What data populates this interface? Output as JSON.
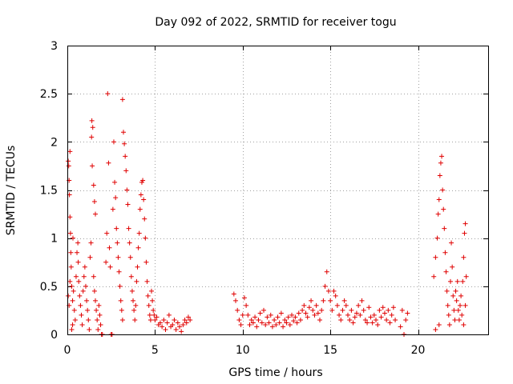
{
  "chart_data": {
    "type": "scatter",
    "title": "Day 092 of 2022, SRMTID for receiver togu",
    "xlabel": "GPS time / hours",
    "ylabel": "SRMTID / TECUs",
    "xlim": [
      0,
      24
    ],
    "ylim": [
      0,
      3
    ],
    "xticks": [
      0,
      5,
      10,
      15,
      20
    ],
    "yticks": [
      0,
      0.5,
      1,
      1.5,
      2,
      2.5,
      3
    ],
    "xtick_labels": [
      "0",
      "5",
      "10",
      "15",
      "20"
    ],
    "ytick_labels": [
      "0",
      "0.5",
      "1",
      "1.5",
      "2",
      "2.5",
      "3"
    ],
    "grid": true,
    "marker": "+",
    "color": "#e00000",
    "series": [
      {
        "name": "SRMTID",
        "points": [
          [
            0.05,
            1.8
          ],
          [
            0.08,
            1.75
          ],
          [
            0.1,
            1.6
          ],
          [
            0.12,
            1.45
          ],
          [
            0.15,
            1.22
          ],
          [
            0.18,
            1.05
          ],
          [
            0.2,
            0.85
          ],
          [
            0.05,
            0.4
          ],
          [
            0.1,
            0.3
          ],
          [
            0.15,
            0.55
          ],
          [
            0.22,
            0.7
          ],
          [
            0.25,
            0.5
          ],
          [
            0.3,
            0.35
          ],
          [
            0.35,
            0.45
          ],
          [
            0.4,
            0.25
          ],
          [
            0.45,
            0.15
          ],
          [
            0.3,
            0.1
          ],
          [
            0.5,
            0.6
          ],
          [
            0.55,
            0.85
          ],
          [
            0.6,
            0.95
          ],
          [
            0.62,
            0.75
          ],
          [
            0.65,
            0.55
          ],
          [
            0.7,
            0.4
          ],
          [
            0.75,
            0.3
          ],
          [
            0.8,
            0.2
          ],
          [
            0.85,
            0.1
          ],
          [
            0.9,
            0.45
          ],
          [
            0.95,
            0.6
          ],
          [
            1.0,
            0.7
          ],
          [
            1.05,
            0.5
          ],
          [
            1.1,
            0.35
          ],
          [
            1.15,
            0.25
          ],
          [
            1.2,
            0.15
          ],
          [
            1.25,
            0.05
          ],
          [
            0.15,
            1.9
          ],
          [
            0.32,
            1.0
          ],
          [
            0.25,
            0.05
          ],
          [
            1.4,
            2.22
          ],
          [
            1.45,
            2.15
          ],
          [
            1.38,
            2.05
          ],
          [
            1.42,
            1.75
          ],
          [
            1.5,
            1.55
          ],
          [
            1.55,
            1.38
          ],
          [
            1.6,
            1.25
          ],
          [
            1.35,
            0.95
          ],
          [
            1.3,
            0.8
          ],
          [
            1.5,
            0.6
          ],
          [
            1.55,
            0.45
          ],
          [
            1.6,
            0.35
          ],
          [
            1.65,
            0.25
          ],
          [
            1.7,
            0.15
          ],
          [
            1.75,
            0.05
          ],
          [
            1.8,
            0.3
          ],
          [
            1.85,
            0.2
          ],
          [
            1.9,
            0.1
          ],
          [
            1.95,
            0.0
          ],
          [
            2.0,
            0.0
          ],
          [
            2.3,
            2.5
          ],
          [
            2.35,
            1.78
          ],
          [
            2.25,
            1.05
          ],
          [
            2.4,
            0.9
          ],
          [
            2.45,
            0.7
          ],
          [
            2.2,
            0.75
          ],
          [
            2.6,
            1.3
          ],
          [
            2.65,
            2.0
          ],
          [
            2.7,
            1.58
          ],
          [
            2.75,
            1.42
          ],
          [
            2.8,
            1.1
          ],
          [
            2.85,
            0.95
          ],
          [
            2.9,
            0.8
          ],
          [
            2.95,
            0.65
          ],
          [
            3.0,
            0.5
          ],
          [
            3.05,
            0.35
          ],
          [
            3.1,
            0.25
          ],
          [
            3.15,
            0.15
          ],
          [
            2.5,
            0.0
          ],
          [
            2.55,
            0.0
          ],
          [
            3.15,
            2.44
          ],
          [
            3.2,
            2.1
          ],
          [
            3.25,
            1.98
          ],
          [
            3.3,
            1.85
          ],
          [
            3.35,
            1.7
          ],
          [
            3.4,
            1.5
          ],
          [
            3.45,
            1.35
          ],
          [
            3.5,
            1.1
          ],
          [
            3.55,
            0.95
          ],
          [
            3.6,
            0.8
          ],
          [
            3.65,
            0.6
          ],
          [
            3.7,
            0.45
          ],
          [
            3.75,
            0.35
          ],
          [
            3.8,
            0.25
          ],
          [
            3.85,
            0.15
          ],
          [
            3.9,
            0.3
          ],
          [
            3.95,
            0.55
          ],
          [
            4.0,
            0.7
          ],
          [
            4.05,
            0.9
          ],
          [
            4.1,
            1.05
          ],
          [
            4.15,
            1.3
          ],
          [
            4.2,
            1.45
          ],
          [
            4.25,
            1.58
          ],
          [
            4.3,
            1.6
          ],
          [
            4.35,
            1.4
          ],
          [
            4.4,
            1.2
          ],
          [
            4.45,
            1.0
          ],
          [
            4.5,
            0.75
          ],
          [
            4.55,
            0.55
          ],
          [
            4.6,
            0.4
          ],
          [
            4.65,
            0.3
          ],
          [
            4.7,
            0.2
          ],
          [
            4.75,
            0.15
          ],
          [
            4.8,
            0.45
          ],
          [
            4.85,
            0.35
          ],
          [
            4.9,
            0.25
          ],
          [
            4.95,
            0.2
          ],
          [
            5.0,
            0.15
          ],
          [
            5.1,
            0.18
          ],
          [
            5.2,
            0.1
          ],
          [
            5.3,
            0.12
          ],
          [
            5.4,
            0.08
          ],
          [
            5.5,
            0.15
          ],
          [
            5.6,
            0.05
          ],
          [
            5.7,
            0.12
          ],
          [
            5.8,
            0.2
          ],
          [
            5.9,
            0.08
          ],
          [
            6.0,
            0.1
          ],
          [
            6.1,
            0.15
          ],
          [
            6.2,
            0.05
          ],
          [
            6.3,
            0.12
          ],
          [
            6.4,
            0.08
          ],
          [
            6.5,
            0.03
          ],
          [
            6.6,
            0.1
          ],
          [
            6.7,
            0.15
          ],
          [
            6.8,
            0.12
          ],
          [
            6.9,
            0.18
          ],
          [
            7.0,
            0.15
          ],
          [
            9.5,
            0.42
          ],
          [
            9.6,
            0.35
          ],
          [
            9.7,
            0.25
          ],
          [
            9.8,
            0.15
          ],
          [
            9.9,
            0.1
          ],
          [
            10.0,
            0.2
          ],
          [
            10.1,
            0.38
          ],
          [
            10.2,
            0.3
          ],
          [
            10.3,
            0.2
          ],
          [
            10.4,
            0.1
          ],
          [
            10.5,
            0.15
          ],
          [
            10.6,
            0.12
          ],
          [
            10.7,
            0.18
          ],
          [
            10.8,
            0.08
          ],
          [
            10.9,
            0.15
          ],
          [
            11.0,
            0.22
          ],
          [
            11.1,
            0.12
          ],
          [
            11.2,
            0.25
          ],
          [
            11.3,
            0.1
          ],
          [
            11.4,
            0.18
          ],
          [
            11.5,
            0.12
          ],
          [
            11.6,
            0.2
          ],
          [
            11.7,
            0.08
          ],
          [
            11.8,
            0.15
          ],
          [
            11.9,
            0.1
          ],
          [
            12.0,
            0.18
          ],
          [
            12.1,
            0.12
          ],
          [
            12.2,
            0.22
          ],
          [
            12.3,
            0.08
          ],
          [
            12.4,
            0.15
          ],
          [
            12.5,
            0.12
          ],
          [
            12.6,
            0.18
          ],
          [
            12.7,
            0.1
          ],
          [
            12.8,
            0.2
          ],
          [
            12.9,
            0.14
          ],
          [
            13.0,
            0.18
          ],
          [
            13.1,
            0.12
          ],
          [
            13.2,
            0.22
          ],
          [
            13.3,
            0.15
          ],
          [
            13.4,
            0.25
          ],
          [
            13.5,
            0.3
          ],
          [
            13.6,
            0.22
          ],
          [
            13.7,
            0.18
          ],
          [
            13.8,
            0.28
          ],
          [
            13.9,
            0.35
          ],
          [
            14.0,
            0.25
          ],
          [
            14.1,
            0.2
          ],
          [
            14.2,
            0.3
          ],
          [
            14.3,
            0.22
          ],
          [
            14.4,
            0.15
          ],
          [
            14.5,
            0.25
          ],
          [
            14.6,
            0.35
          ],
          [
            14.7,
            0.5
          ],
          [
            14.8,
            0.65
          ],
          [
            14.9,
            0.45
          ],
          [
            15.0,
            0.35
          ],
          [
            15.1,
            0.25
          ],
          [
            15.2,
            0.45
          ],
          [
            15.3,
            0.4
          ],
          [
            15.4,
            0.3
          ],
          [
            15.5,
            0.2
          ],
          [
            15.6,
            0.15
          ],
          [
            15.7,
            0.25
          ],
          [
            15.8,
            0.35
          ],
          [
            15.9,
            0.3
          ],
          [
            16.0,
            0.2
          ],
          [
            16.1,
            0.15
          ],
          [
            16.2,
            0.25
          ],
          [
            16.3,
            0.12
          ],
          [
            16.4,
            0.18
          ],
          [
            16.5,
            0.22
          ],
          [
            16.6,
            0.3
          ],
          [
            16.7,
            0.2
          ],
          [
            16.8,
            0.35
          ],
          [
            16.9,
            0.25
          ],
          [
            17.0,
            0.15
          ],
          [
            17.1,
            0.12
          ],
          [
            17.2,
            0.28
          ],
          [
            17.3,
            0.18
          ],
          [
            17.4,
            0.12
          ],
          [
            17.5,
            0.2
          ],
          [
            17.6,
            0.15
          ],
          [
            17.7,
            0.1
          ],
          [
            17.8,
            0.25
          ],
          [
            17.9,
            0.18
          ],
          [
            18.0,
            0.28
          ],
          [
            18.1,
            0.22
          ],
          [
            18.2,
            0.15
          ],
          [
            18.3,
            0.25
          ],
          [
            18.4,
            0.12
          ],
          [
            18.5,
            0.2
          ],
          [
            18.6,
            0.28
          ],
          [
            18.7,
            0.15
          ],
          [
            19.0,
            0.08
          ],
          [
            19.1,
            0.25
          ],
          [
            19.2,
            0.0
          ],
          [
            19.3,
            0.15
          ],
          [
            19.4,
            0.22
          ],
          [
            20.9,
            0.6
          ],
          [
            21.0,
            0.8
          ],
          [
            21.1,
            1.0
          ],
          [
            21.15,
            1.25
          ],
          [
            21.2,
            1.4
          ],
          [
            21.25,
            1.65
          ],
          [
            21.3,
            1.78
          ],
          [
            21.35,
            1.85
          ],
          [
            21.4,
            1.5
          ],
          [
            21.45,
            1.3
          ],
          [
            21.5,
            1.1
          ],
          [
            21.55,
            0.85
          ],
          [
            21.6,
            0.65
          ],
          [
            21.65,
            0.45
          ],
          [
            21.7,
            0.3
          ],
          [
            21.75,
            0.2
          ],
          [
            21.8,
            0.1
          ],
          [
            21.85,
            0.55
          ],
          [
            21.9,
            0.95
          ],
          [
            21.95,
            0.7
          ],
          [
            22.0,
            0.4
          ],
          [
            22.05,
            0.25
          ],
          [
            22.1,
            0.15
          ],
          [
            22.15,
            0.45
          ],
          [
            22.2,
            0.35
          ],
          [
            22.25,
            0.55
          ],
          [
            22.3,
            0.25
          ],
          [
            22.35,
            0.15
          ],
          [
            22.4,
            0.3
          ],
          [
            22.45,
            0.4
          ],
          [
            22.5,
            0.2
          ],
          [
            22.55,
            0.55
          ],
          [
            22.6,
            0.8
          ],
          [
            22.65,
            1.05
          ],
          [
            22.7,
            1.15
          ],
          [
            22.75,
            0.6
          ],
          [
            22.7,
            0.3
          ],
          [
            22.6,
            0.1
          ],
          [
            21.0,
            0.05
          ],
          [
            21.2,
            0.1
          ]
        ]
      }
    ]
  }
}
